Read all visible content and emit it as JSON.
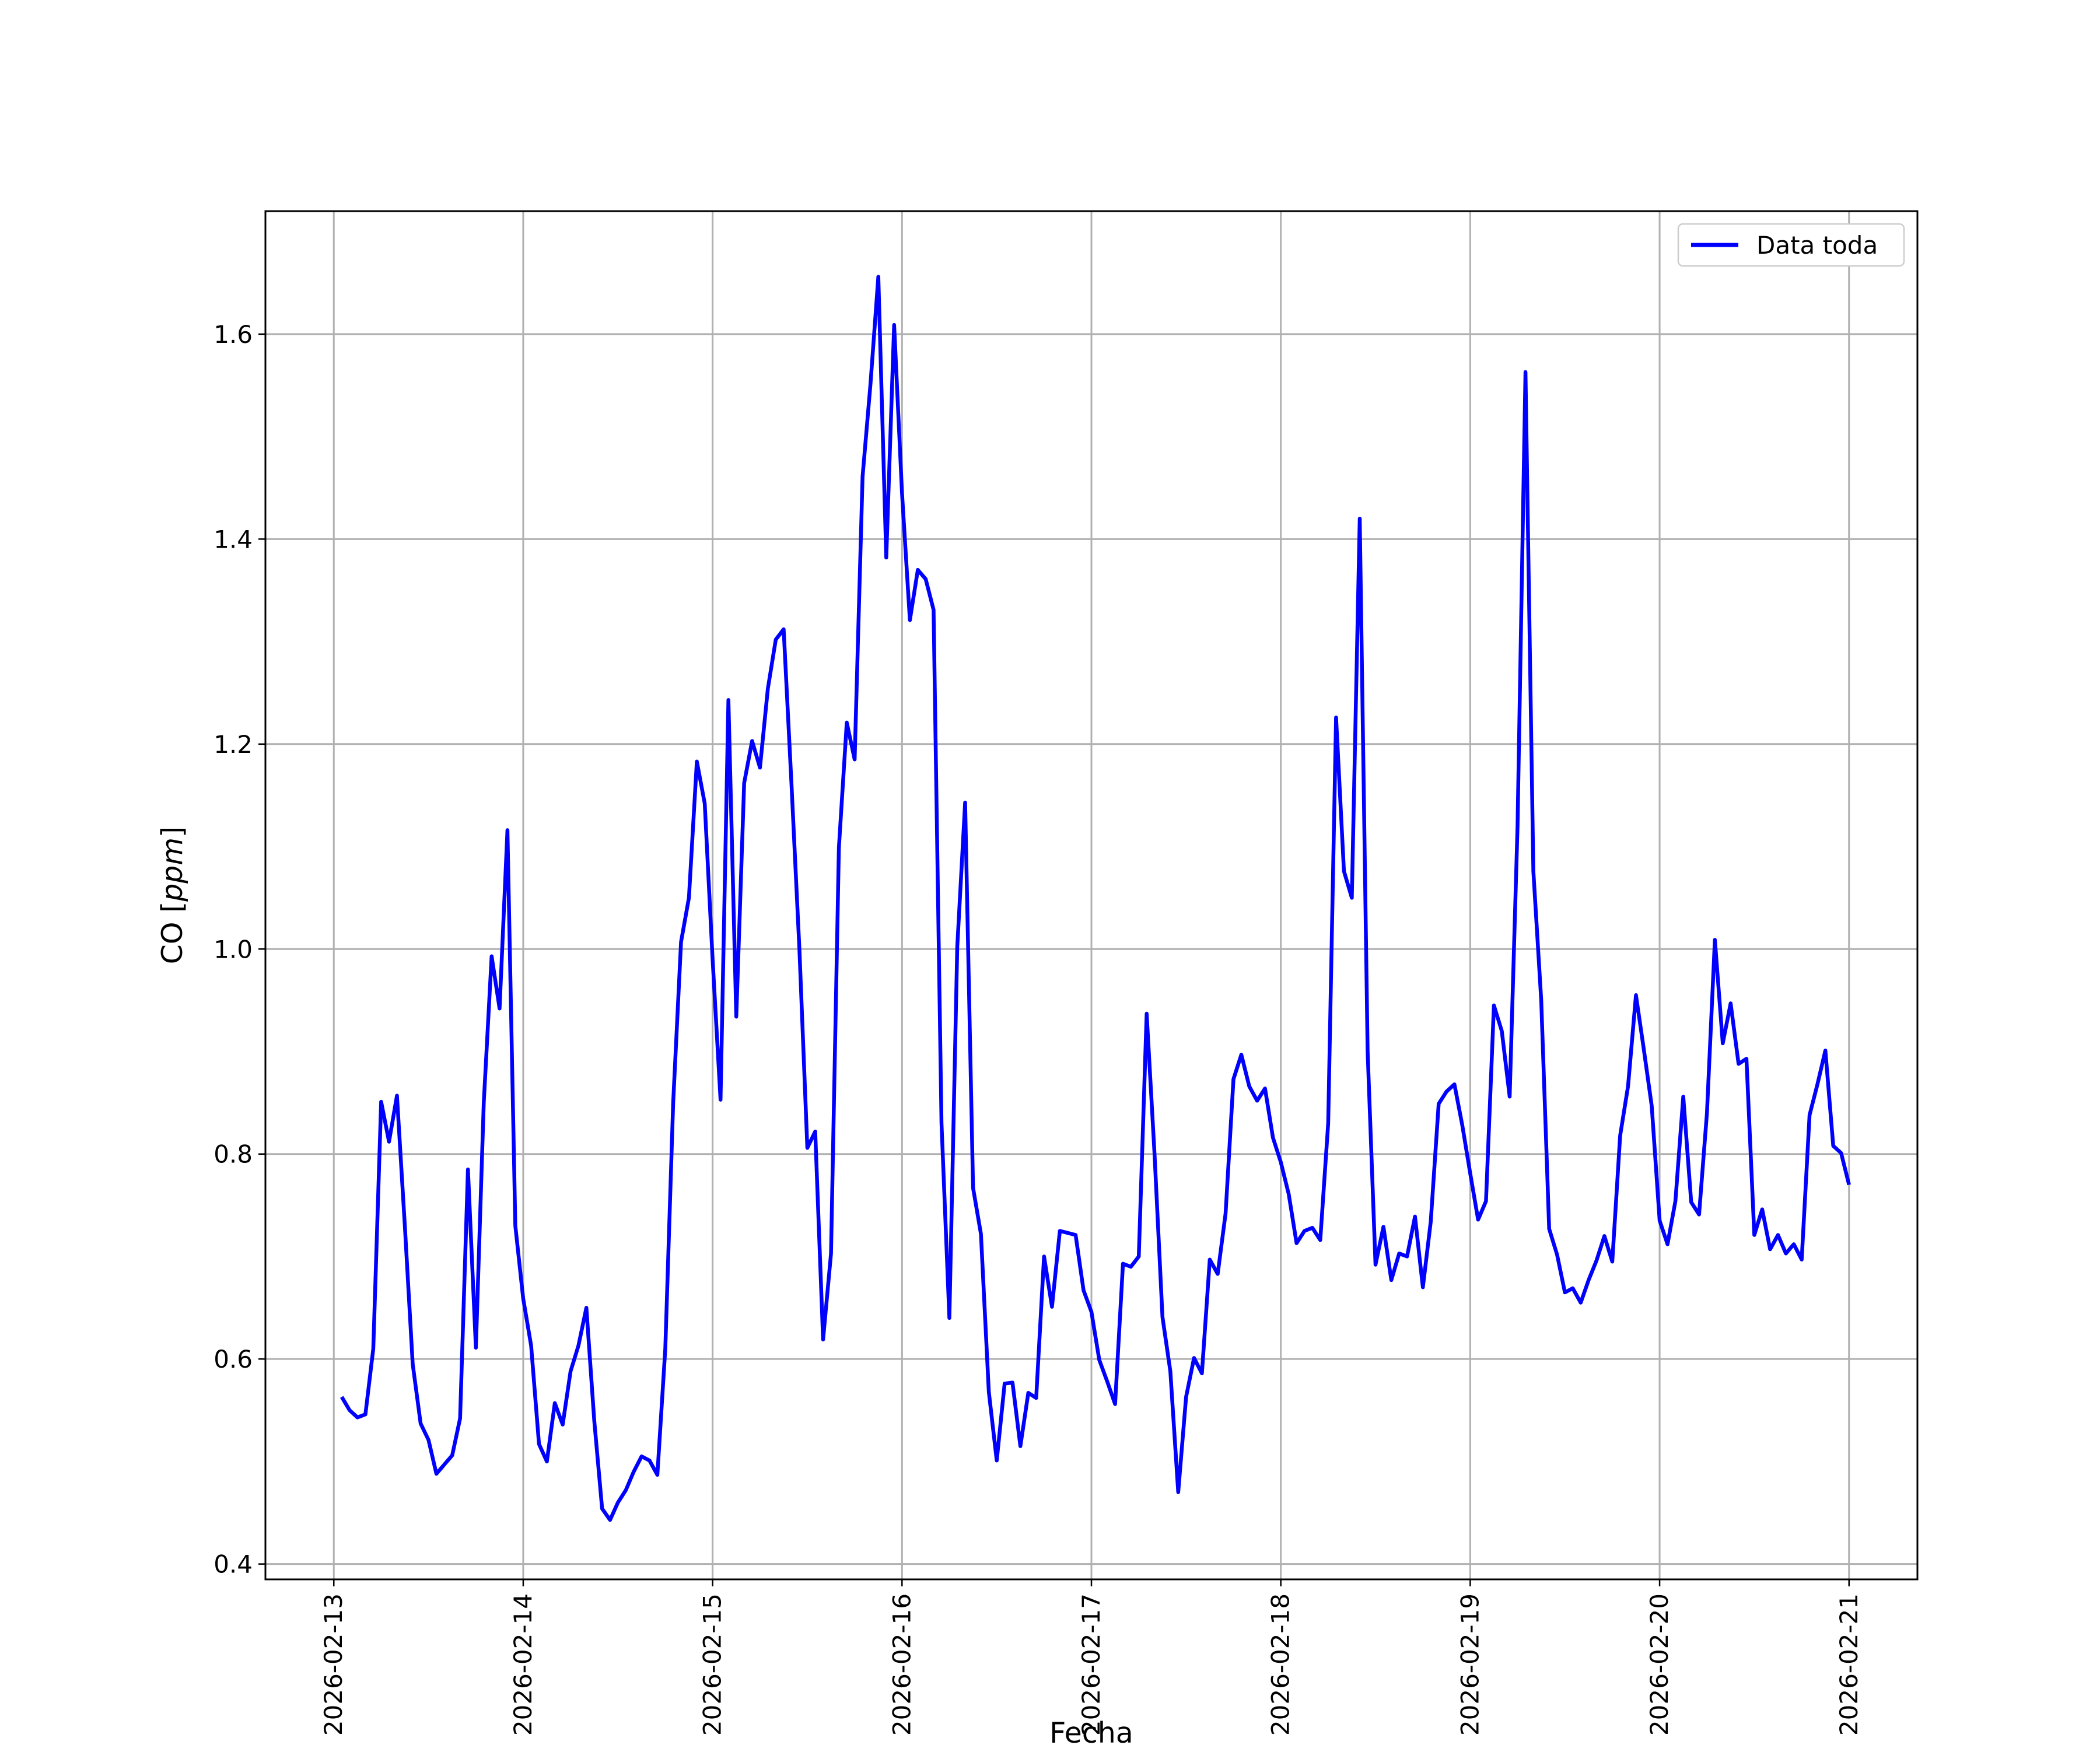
{
  "chart_data": {
    "type": "line",
    "title": "",
    "xlabel": "Fecha",
    "ylabel_prefix": "CO ",
    "ylabel_unit": "ppm",
    "ylabel": "CO [ppm]",
    "grid": true,
    "legend_position": "top-right",
    "x_range": [
      "2026-02-12T15:20",
      "2026-02-21T08:40"
    ],
    "ylim": [
      0.385,
      1.72
    ],
    "x_ticks": [
      "2026-02-13",
      "2026-02-14",
      "2026-02-15",
      "2026-02-16",
      "2026-02-17",
      "2026-02-18",
      "2026-02-19",
      "2026-02-20",
      "2026-02-21"
    ],
    "y_ticks": [
      0.4,
      0.6,
      0.8,
      1.0,
      1.2,
      1.4,
      1.6
    ],
    "y_tick_labels": [
      "0.4",
      "0.6",
      "0.8",
      "1.0",
      "1.2",
      "1.4",
      "1.6"
    ],
    "series": [
      {
        "name": "Data toda",
        "color": "#0000ff",
        "x": [
          "2026-02-13T01:00",
          "2026-02-13T02:00",
          "2026-02-13T03:00",
          "2026-02-13T04:00",
          "2026-02-13T05:00",
          "2026-02-13T06:00",
          "2026-02-13T07:00",
          "2026-02-13T08:00",
          "2026-02-13T09:00",
          "2026-02-13T10:00",
          "2026-02-13T11:00",
          "2026-02-13T12:00",
          "2026-02-13T13:00",
          "2026-02-13T14:00",
          "2026-02-13T15:00",
          "2026-02-13T16:00",
          "2026-02-13T17:00",
          "2026-02-13T18:00",
          "2026-02-13T19:00",
          "2026-02-13T20:00",
          "2026-02-13T21:00",
          "2026-02-13T22:00",
          "2026-02-13T23:00",
          "2026-02-14T00:00",
          "2026-02-14T01:00",
          "2026-02-14T02:00",
          "2026-02-14T03:00",
          "2026-02-14T04:00",
          "2026-02-14T05:00",
          "2026-02-14T06:00",
          "2026-02-14T07:00",
          "2026-02-14T08:00",
          "2026-02-14T09:00",
          "2026-02-14T10:00",
          "2026-02-14T11:00",
          "2026-02-14T12:00",
          "2026-02-14T13:00",
          "2026-02-14T14:00",
          "2026-02-14T15:00",
          "2026-02-14T16:00",
          "2026-02-14T17:00",
          "2026-02-14T18:00",
          "2026-02-14T19:00",
          "2026-02-14T20:00",
          "2026-02-14T21:00",
          "2026-02-14T22:00",
          "2026-02-14T23:00",
          "2026-02-15T00:00",
          "2026-02-15T01:00",
          "2026-02-15T02:00",
          "2026-02-15T03:00",
          "2026-02-15T04:00",
          "2026-02-15T05:00",
          "2026-02-15T06:00",
          "2026-02-15T07:00",
          "2026-02-15T08:00",
          "2026-02-15T09:00",
          "2026-02-15T10:00",
          "2026-02-15T11:00",
          "2026-02-15T12:00",
          "2026-02-15T13:00",
          "2026-02-15T14:00",
          "2026-02-15T15:00",
          "2026-02-15T16:00",
          "2026-02-15T17:00",
          "2026-02-15T18:00",
          "2026-02-15T19:00",
          "2026-02-15T20:00",
          "2026-02-15T21:00",
          "2026-02-15T22:00",
          "2026-02-15T23:00",
          "2026-02-16T00:00",
          "2026-02-16T01:00",
          "2026-02-16T02:00",
          "2026-02-16T03:00",
          "2026-02-16T04:00",
          "2026-02-16T05:00",
          "2026-02-16T06:00",
          "2026-02-16T07:00",
          "2026-02-16T08:00",
          "2026-02-16T09:00",
          "2026-02-16T10:00",
          "2026-02-16T11:00",
          "2026-02-16T12:00",
          "2026-02-16T13:00",
          "2026-02-16T14:00",
          "2026-02-16T15:00",
          "2026-02-16T16:00",
          "2026-02-16T17:00",
          "2026-02-16T18:00",
          "2026-02-16T19:00",
          "2026-02-16T20:00",
          "2026-02-16T21:00",
          "2026-02-16T22:00",
          "2026-02-16T23:00",
          "2026-02-17T00:00",
          "2026-02-17T01:00",
          "2026-02-17T02:00",
          "2026-02-17T03:00",
          "2026-02-17T04:00",
          "2026-02-17T05:00",
          "2026-02-17T06:00",
          "2026-02-17T07:00",
          "2026-02-17T08:00",
          "2026-02-17T09:00",
          "2026-02-17T10:00",
          "2026-02-17T11:00",
          "2026-02-17T12:00",
          "2026-02-17T13:00",
          "2026-02-17T14:00",
          "2026-02-17T15:00",
          "2026-02-17T16:00",
          "2026-02-17T17:00",
          "2026-02-17T18:00",
          "2026-02-17T19:00",
          "2026-02-17T20:00",
          "2026-02-17T21:00",
          "2026-02-17T22:00",
          "2026-02-17T23:00",
          "2026-02-18T00:00",
          "2026-02-18T01:00",
          "2026-02-18T02:00",
          "2026-02-18T03:00",
          "2026-02-18T04:00",
          "2026-02-18T05:00",
          "2026-02-18T06:00",
          "2026-02-18T07:00",
          "2026-02-18T08:00",
          "2026-02-18T09:00",
          "2026-02-18T10:00",
          "2026-02-18T11:00",
          "2026-02-18T12:00",
          "2026-02-18T13:00",
          "2026-02-18T14:00",
          "2026-02-18T15:00",
          "2026-02-18T16:00",
          "2026-02-18T17:00",
          "2026-02-18T18:00",
          "2026-02-18T19:00",
          "2026-02-18T20:00",
          "2026-02-18T21:00",
          "2026-02-18T22:00",
          "2026-02-18T23:00",
          "2026-02-19T00:00",
          "2026-02-19T01:00",
          "2026-02-19T02:00",
          "2026-02-19T03:00",
          "2026-02-19T04:00",
          "2026-02-19T05:00",
          "2026-02-19T06:00",
          "2026-02-19T07:00",
          "2026-02-19T08:00",
          "2026-02-19T09:00",
          "2026-02-19T10:00",
          "2026-02-19T11:00",
          "2026-02-19T12:00",
          "2026-02-19T13:00",
          "2026-02-19T14:00",
          "2026-02-19T15:00",
          "2026-02-19T16:00",
          "2026-02-19T17:00",
          "2026-02-19T18:00",
          "2026-02-19T19:00",
          "2026-02-19T20:00",
          "2026-02-19T21:00",
          "2026-02-19T22:00",
          "2026-02-19T23:00",
          "2026-02-20T00:00",
          "2026-02-20T01:00",
          "2026-02-20T02:00",
          "2026-02-20T03:00",
          "2026-02-20T04:00",
          "2026-02-20T05:00",
          "2026-02-20T06:00",
          "2026-02-20T07:00",
          "2026-02-20T08:00",
          "2026-02-20T09:00",
          "2026-02-20T10:00",
          "2026-02-20T11:00",
          "2026-02-20T12:00",
          "2026-02-20T13:00",
          "2026-02-20T14:00",
          "2026-02-20T15:00",
          "2026-02-20T16:00",
          "2026-02-20T17:00",
          "2026-02-20T18:00",
          "2026-02-20T19:00",
          "2026-02-20T20:00",
          "2026-02-20T21:00",
          "2026-02-20T22:00",
          "2026-02-20T23:00",
          "2026-02-21T00:00"
        ],
        "y": [
          0.563,
          0.55,
          0.543,
          0.546,
          0.61,
          0.851,
          0.812,
          0.857,
          0.73,
          0.595,
          0.537,
          0.521,
          0.488,
          0.497,
          0.506,
          0.542,
          0.785,
          0.611,
          0.85,
          0.993,
          0.942,
          1.116,
          0.73,
          0.659,
          0.613,
          0.517,
          0.5,
          0.557,
          0.536,
          0.588,
          0.613,
          0.65,
          0.54,
          0.454,
          0.443,
          0.46,
          0.472,
          0.49,
          0.505,
          0.501,
          0.487,
          0.61,
          0.85,
          1.007,
          1.05,
          1.183,
          1.142,
          0.99,
          0.853,
          1.243,
          0.934,
          1.162,
          1.203,
          1.177,
          1.254,
          1.302,
          1.312,
          1.16,
          1.0,
          0.806,
          0.822,
          0.619,
          0.703,
          1.099,
          1.221,
          1.185,
          1.461,
          1.551,
          1.656,
          1.382,
          1.609,
          1.445,
          1.321,
          1.37,
          1.361,
          1.331,
          0.83,
          0.64,
          1.002,
          1.143,
          0.767,
          0.722,
          0.568,
          0.501,
          0.576,
          0.577,
          0.515,
          0.567,
          0.562,
          0.7,
          0.651,
          0.725,
          0.723,
          0.721,
          0.667,
          0.646,
          0.599,
          0.578,
          0.556,
          0.693,
          0.69,
          0.7,
          0.937,
          0.8,
          0.641,
          0.588,
          0.47,
          0.563,
          0.601,
          0.586,
          0.697,
          0.683,
          0.742,
          0.873,
          0.897,
          0.866,
          0.852,
          0.864,
          0.816,
          0.792,
          0.761,
          0.713,
          0.725,
          0.728,
          0.716,
          0.83,
          1.226,
          1.076,
          1.05,
          1.42,
          0.9,
          0.692,
          0.729,
          0.677,
          0.703,
          0.7,
          0.739,
          0.67,
          0.734,
          0.849,
          0.861,
          0.868,
          0.828,
          0.781,
          0.736,
          0.754,
          0.945,
          0.92,
          0.856,
          1.12,
          1.563,
          1.076,
          0.95,
          0.727,
          0.702,
          0.665,
          0.669,
          0.655,
          0.677,
          0.696,
          0.72,
          0.695,
          0.818,
          0.866,
          0.955,
          0.902,
          0.847,
          0.735,
          0.712,
          0.754,
          0.856,
          0.753,
          0.741,
          0.84,
          1.009,
          0.908,
          0.947,
          0.888,
          0.893,
          0.721,
          0.746,
          0.707,
          0.721,
          0.703,
          0.712,
          0.697,
          0.838,
          0.868,
          0.901,
          0.808,
          0.801,
          0.77
        ]
      }
    ]
  }
}
